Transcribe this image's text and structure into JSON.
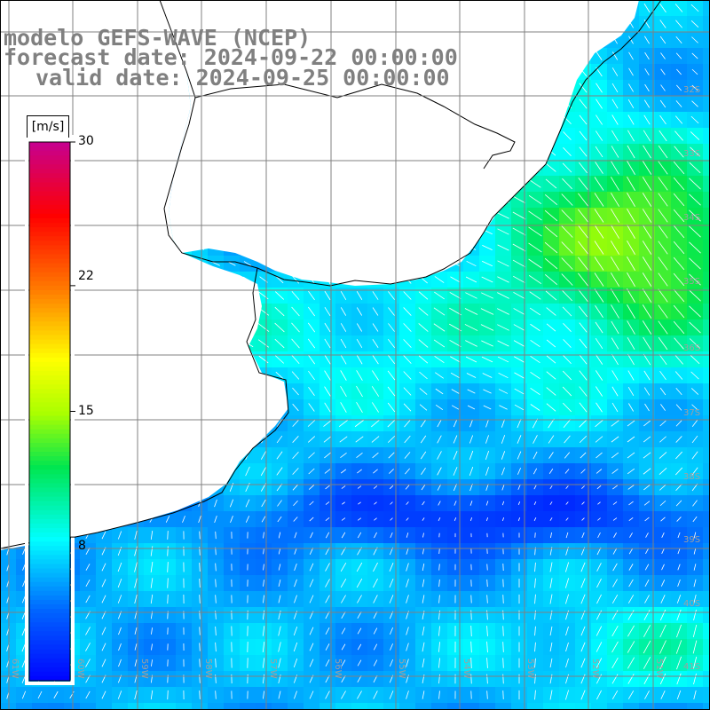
{
  "titles": {
    "line1": "modelo GEFS-WAVE (NCEP)",
    "line2": "forecast date: 2024-09-22 00:00:00",
    "line3": "valid date: 2024-09-25 00:00:00"
  },
  "colorbar": {
    "unit": "[m/s]",
    "ticks": [
      "30",
      "22",
      "15",
      "8"
    ],
    "tick_values": [
      30,
      22,
      15,
      8
    ],
    "min": 0,
    "max": 30
  },
  "lat_labels": [
    "32S",
    "33S",
    "34S",
    "35S",
    "36S",
    "37S",
    "38S",
    "39S",
    "40S",
    "41S"
  ],
  "lon_labels": [
    "61W",
    "60W",
    "59W",
    "58W",
    "57W",
    "56W",
    "55W",
    "54W",
    "53W",
    "52W",
    "51W"
  ],
  "colors": {
    "land": "#ffffff",
    "coast": "#000000",
    "grid": "#808080",
    "title": "#808080",
    "arrow": "#ffffff"
  }
}
